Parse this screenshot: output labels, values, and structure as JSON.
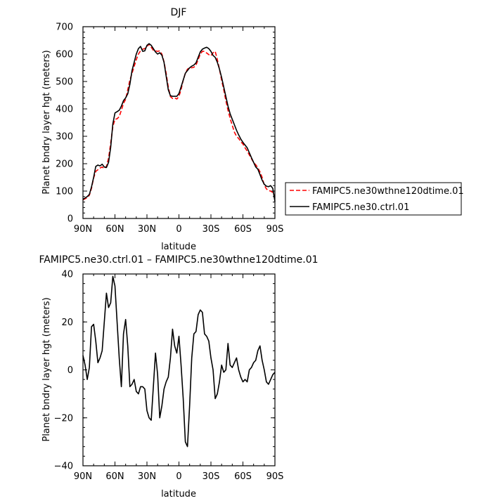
{
  "chart_data": [
    {
      "type": "line",
      "title": "DJF",
      "xlabel": "latitude",
      "ylabel": "Planet bndry layer hgt (meters)",
      "xlim": [
        90,
        -90
      ],
      "ylim": [
        0,
        700
      ],
      "x_ticks": [
        90,
        60,
        30,
        0,
        -30,
        -60,
        -90
      ],
      "x_tick_labels": [
        "90N",
        "60N",
        "30N",
        "0",
        "30S",
        "60S",
        "90S"
      ],
      "y_ticks": [
        0,
        100,
        200,
        300,
        400,
        500,
        600,
        700
      ],
      "y_tick_labels": [
        "0",
        "100",
        "200",
        "300",
        "400",
        "500",
        "600",
        "700"
      ],
      "grid": false,
      "legend_position": "outside-right",
      "series": [
        {
          "name": "FAMIPC5.ne30wthne120dtime.01",
          "color": "#ff0000",
          "dash": "dashed",
          "x": [
            90,
            88,
            86,
            84,
            82,
            80,
            78,
            76,
            74,
            72,
            70,
            68,
            66,
            64,
            62,
            60,
            58,
            56,
            54,
            52,
            50,
            48,
            46,
            44,
            42,
            40,
            38,
            36,
            34,
            32,
            30,
            28,
            26,
            24,
            22,
            20,
            18,
            16,
            14,
            12,
            10,
            8,
            6,
            4,
            2,
            0,
            -2,
            -4,
            -6,
            -8,
            -10,
            -12,
            -14,
            -16,
            -18,
            -20,
            -22,
            -24,
            -26,
            -28,
            -30,
            -32,
            -34,
            -36,
            -38,
            -40,
            -42,
            -44,
            -46,
            -48,
            -50,
            -52,
            -54,
            -56,
            -58,
            -60,
            -62,
            -64,
            -66,
            -68,
            -70,
            -72,
            -74,
            -76,
            -78,
            -80,
            -82,
            -84,
            -86,
            -88,
            -90
          ],
          "values": [
            68,
            72,
            76,
            85,
            110,
            148,
            172,
            178,
            184,
            188,
            182,
            190,
            220,
            275,
            335,
            362,
            364,
            372,
            395,
            420,
            435,
            470,
            505,
            530,
            555,
            580,
            600,
            612,
            618,
            620,
            628,
            636,
            625,
            614,
            612,
            610,
            612,
            600,
            572,
            530,
            480,
            445,
            438,
            440,
            436,
            446,
            470,
            505,
            530,
            545,
            550,
            550,
            552,
            560,
            580,
            600,
            610,
            610,
            604,
            598,
            594,
            605,
            610,
            580,
            545,
            505,
            470,
            430,
            395,
            365,
            340,
            315,
            300,
            292,
            280,
            272,
            258,
            246,
            232,
            218,
            205,
            196,
            185,
            170,
            150,
            122,
            108,
            102,
            100,
            95,
            80
          ]
        },
        {
          "name": "FAMIPC5.ne30.ctrl.01",
          "color": "#000000",
          "dash": "solid",
          "x": [
            90,
            88,
            86,
            84,
            82,
            80,
            78,
            76,
            74,
            72,
            70,
            68,
            66,
            64,
            62,
            60,
            58,
            56,
            54,
            52,
            50,
            48,
            46,
            44,
            42,
            40,
            38,
            36,
            34,
            32,
            30,
            28,
            26,
            24,
            22,
            20,
            18,
            16,
            14,
            12,
            10,
            8,
            6,
            4,
            2,
            0,
            -2,
            -4,
            -6,
            -8,
            -10,
            -12,
            -14,
            -16,
            -18,
            -20,
            -22,
            -24,
            -26,
            -28,
            -30,
            -32,
            -34,
            -36,
            -38,
            -40,
            -42,
            -44,
            -46,
            -48,
            -50,
            -52,
            -54,
            -56,
            -58,
            -60,
            -62,
            -64,
            -66,
            -68,
            -70,
            -72,
            -74,
            -76,
            -78,
            -80,
            -82,
            -84,
            -86,
            -88,
            -90
          ],
          "values": [
            70,
            75,
            80,
            88,
            115,
            150,
            190,
            195,
            192,
            198,
            188,
            186,
            205,
            260,
            345,
            385,
            390,
            395,
            410,
            430,
            440,
            455,
            490,
            540,
            570,
            600,
            620,
            628,
            610,
            612,
            632,
            638,
            632,
            620,
            608,
            600,
            605,
            596,
            570,
            520,
            470,
            448,
            446,
            446,
            446,
            456,
            480,
            505,
            530,
            540,
            550,
            556,
            560,
            568,
            588,
            608,
            618,
            622,
            625,
            620,
            610,
            595,
            588,
            570,
            545,
            515,
            480,
            445,
            410,
            382,
            362,
            342,
            322,
            305,
            290,
            278,
            268,
            258,
            240,
            222,
            205,
            188,
            180,
            160,
            140,
            125,
            118,
            116,
            120,
            110,
            62
          ]
        }
      ]
    },
    {
      "type": "line",
      "title": "FAMIPC5.ne30.ctrl.01 – FAMIPC5.ne30wthne120dtime.01",
      "xlabel": "latitude",
      "ylabel": "Planet bndry layer hgt (meters)",
      "xlim": [
        90,
        -90
      ],
      "ylim": [
        -40,
        40
      ],
      "x_ticks": [
        90,
        60,
        30,
        0,
        -30,
        -60,
        -90
      ],
      "x_tick_labels": [
        "90N",
        "60N",
        "30N",
        "0",
        "30S",
        "60S",
        "90S"
      ],
      "y_ticks": [
        -40,
        -20,
        0,
        20,
        40
      ],
      "y_tick_labels": [
        "−40",
        "−20",
        "0",
        "20",
        "40"
      ],
      "grid": false,
      "series": [
        {
          "color": "#000000",
          "dash": "solid",
          "x": [
            90,
            88,
            86,
            84,
            82,
            80,
            78,
            76,
            74,
            72,
            70,
            68,
            66,
            64,
            62,
            60,
            58,
            56,
            54,
            52,
            50,
            48,
            46,
            44,
            42,
            40,
            38,
            36,
            34,
            32,
            30,
            28,
            26,
            24,
            22,
            20,
            18,
            16,
            14,
            12,
            10,
            8,
            6,
            4,
            2,
            0,
            -2,
            -4,
            -6,
            -8,
            -10,
            -12,
            -14,
            -16,
            -18,
            -20,
            -22,
            -24,
            -26,
            -28,
            -30,
            -32,
            -34,
            -36,
            -38,
            -40,
            -42,
            -44,
            -46,
            -48,
            -50,
            -52,
            -54,
            -56,
            -58,
            -60,
            -62,
            -64,
            -66,
            -68,
            -70,
            -72,
            -74,
            -76,
            -78,
            -80,
            -82,
            -84,
            -86,
            -88,
            -90
          ],
          "values": [
            6,
            2,
            -4,
            1,
            18,
            19,
            12,
            3,
            5,
            8,
            20,
            32,
            26,
            28,
            39,
            35,
            20,
            5,
            -7,
            15,
            21,
            10,
            -7,
            -6,
            -4,
            -9,
            -10,
            -7,
            -7,
            -8,
            -17,
            -20,
            -21,
            -7,
            7,
            -2,
            -20,
            -15,
            -8,
            -5,
            -3,
            5,
            17,
            10,
            7,
            14,
            2,
            -12,
            -30,
            -32,
            -15,
            5,
            15,
            16,
            23,
            25,
            24,
            15,
            14,
            12,
            5,
            0,
            -12,
            -10,
            -5,
            2,
            -1,
            0,
            11,
            2,
            1,
            3,
            5,
            0,
            -3,
            -5,
            -4,
            -5,
            0,
            1,
            3,
            4,
            8,
            10,
            4,
            0,
            -5,
            -6,
            -4,
            -2,
            -1
          ]
        }
      ]
    }
  ]
}
